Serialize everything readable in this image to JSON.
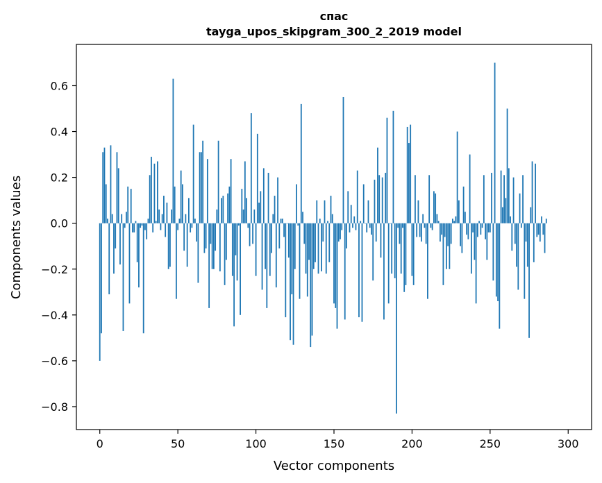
{
  "chart_data": {
    "type": "bar",
    "title_line1": "спас",
    "title_line2": "tayga_upos_skipgram_300_2_2019 model",
    "xlabel": "Vector components",
    "ylabel": "Components values",
    "xlim": [
      -15,
      315
    ],
    "ylim": [
      -0.9,
      0.78
    ],
    "x_ticks": [
      0,
      50,
      100,
      150,
      200,
      250,
      300
    ],
    "x_tick_labels": [
      "0",
      "50",
      "100",
      "150",
      "200",
      "250",
      "300"
    ],
    "y_ticks": [
      -0.8,
      -0.6,
      -0.4,
      -0.2,
      0.0,
      0.2,
      0.4,
      0.6
    ],
    "y_tick_labels": [
      "−0.8",
      "−0.6",
      "−0.4",
      "−0.2",
      "0.0",
      "0.2",
      "0.4",
      "0.6"
    ],
    "bar_color": "#1f77b4",
    "values": [
      -0.6,
      -0.48,
      0.31,
      0.33,
      0.17,
      0.02,
      -0.31,
      0.34,
      0.04,
      -0.22,
      -0.11,
      0.31,
      0.24,
      -0.18,
      0.04,
      -0.47,
      -0.02,
      0.05,
      0.16,
      -0.35,
      0.15,
      -0.04,
      -0.04,
      0.01,
      -0.17,
      -0.28,
      -0.02,
      -0.01,
      -0.48,
      -0.03,
      -0.07,
      0.02,
      0.21,
      0.29,
      -0.04,
      0.26,
      0.01,
      0.27,
      0.06,
      -0.03,
      0.04,
      0.12,
      -0.06,
      0.09,
      -0.2,
      -0.19,
      0.06,
      0.63,
      0.16,
      -0.33,
      -0.03,
      0.02,
      0.23,
      0.17,
      -0.12,
      0.04,
      -0.19,
      0.11,
      -0.04,
      -0.02,
      0.43,
      0.02,
      -0.08,
      -0.26,
      0.31,
      0.31,
      0.36,
      -0.13,
      -0.11,
      0.28,
      -0.37,
      -0.09,
      -0.2,
      -0.2,
      -0.12,
      0.06,
      0.36,
      -0.21,
      0.11,
      0.12,
      -0.27,
      -0.16,
      0.13,
      0.16,
      0.28,
      -0.23,
      -0.45,
      -0.14,
      -0.25,
      -0.01,
      -0.4,
      0.15,
      0.06,
      0.27,
      0.11,
      -0.02,
      -0.1,
      0.48,
      -0.09,
      0.06,
      -0.23,
      0.39,
      0.09,
      0.14,
      -0.29,
      0.24,
      -0.2,
      -0.37,
      0.22,
      -0.23,
      -0.13,
      0.04,
      0.12,
      -0.28,
      0.2,
      -0.11,
      0.02,
      0.02,
      -0.06,
      -0.41,
      0.0,
      -0.15,
      -0.51,
      -0.31,
      -0.53,
      -0.2,
      0.17,
      -0.01,
      -0.33,
      0.52,
      0.05,
      -0.09,
      -0.22,
      -0.32,
      -0.16,
      -0.54,
      -0.49,
      -0.2,
      -0.17,
      0.1,
      -0.22,
      0.02,
      -0.21,
      -0.08,
      0.1,
      -0.22,
      0.01,
      -0.17,
      0.12,
      0.04,
      -0.35,
      -0.37,
      -0.46,
      -0.08,
      -0.07,
      -0.03,
      0.55,
      -0.42,
      -0.11,
      0.14,
      -0.04,
      0.08,
      -0.02,
      0.03,
      -0.03,
      0.23,
      -0.41,
      0.01,
      -0.43,
      0.17,
      0.0,
      -0.04,
      0.1,
      -0.02,
      -0.05,
      -0.25,
      0.19,
      -0.08,
      0.33,
      0.21,
      -0.15,
      0.2,
      -0.42,
      0.22,
      0.46,
      -0.35,
      0.0,
      -0.22,
      0.49,
      -0.24,
      -0.83,
      -0.02,
      -0.09,
      -0.22,
      -0.02,
      -0.3,
      -0.27,
      0.42,
      0.35,
      0.43,
      -0.23,
      -0.27,
      0.21,
      -0.06,
      0.1,
      -0.06,
      -0.08,
      0.04,
      -0.02,
      -0.09,
      -0.33,
      0.21,
      -0.02,
      -0.03,
      0.14,
      0.13,
      0.04,
      0.01,
      -0.08,
      -0.05,
      -0.27,
      -0.06,
      -0.2,
      -0.1,
      -0.2,
      -0.09,
      0.02,
      0.01,
      0.03,
      0.4,
      0.1,
      -0.1,
      -0.13,
      0.16,
      0.05,
      -0.05,
      -0.07,
      0.3,
      -0.22,
      -0.04,
      -0.16,
      -0.35,
      -0.06,
      0.01,
      -0.05,
      -0.02,
      0.21,
      -0.07,
      -0.16,
      -0.04,
      -0.04,
      0.22,
      -0.25,
      0.7,
      -0.32,
      -0.34,
      -0.46,
      0.23,
      0.07,
      0.21,
      0.11,
      0.5,
      0.24,
      0.03,
      -0.12,
      0.2,
      -0.09,
      -0.19,
      -0.29,
      0.13,
      -0.02,
      0.21,
      -0.33,
      -0.08,
      -0.19,
      -0.5,
      0.07,
      0.27,
      -0.17,
      0.26,
      -0.06,
      -0.05,
      -0.08,
      0.03,
      -0.05,
      -0.13,
      0.02
    ]
  }
}
